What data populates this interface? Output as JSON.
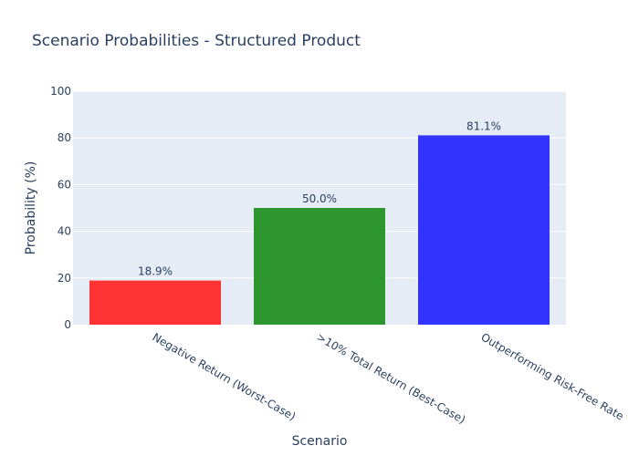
{
  "chart_data": {
    "type": "bar",
    "title": "Scenario Probabilities - Structured Product",
    "xlabel": "Scenario",
    "ylabel": "Probability (%)",
    "ylim": [
      0,
      100
    ],
    "yticks": [
      0,
      20,
      40,
      60,
      80,
      100
    ],
    "grid": true,
    "categories": [
      "Negative Return (Worst-Case)",
      ">10% Total Return (Best-Case)",
      "Outperforming Risk-Free Rate"
    ],
    "values": [
      18.9,
      50.0,
      81.1
    ],
    "data_labels": [
      "18.9%",
      "50.0%",
      "81.1%"
    ],
    "colors": [
      "#ff3333",
      "#2e962e",
      "#3333ff"
    ],
    "plot_background": "#e5ecf6",
    "text_color": "#2a3f5f"
  }
}
